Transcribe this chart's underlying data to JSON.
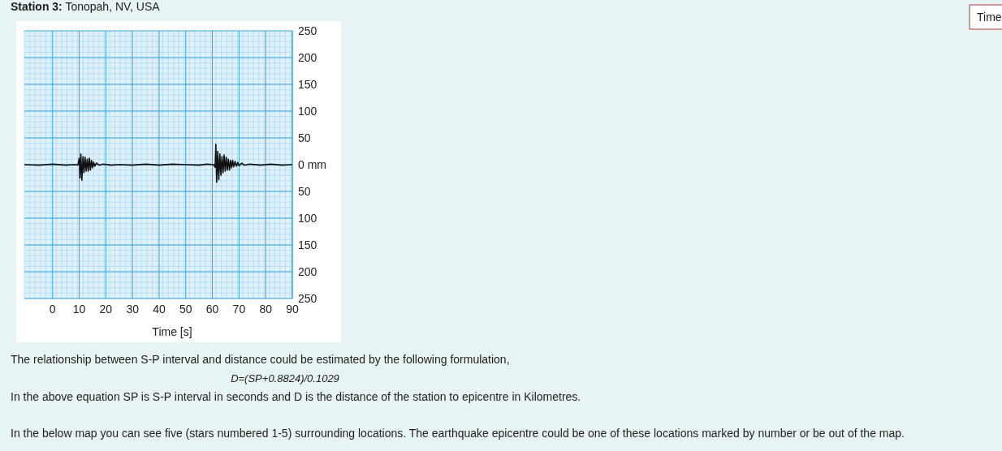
{
  "chart_data": {
    "type": "line",
    "title": "Station 3: Tonopah, NV, USA",
    "xlabel": "Time [s]",
    "x": [
      -10.6,
      -5,
      0,
      5,
      8,
      9.5,
      10,
      10.3,
      10.6,
      11,
      11.4,
      11.8,
      12.2,
      12.6,
      13,
      13.4,
      13.8,
      14.2,
      14.6,
      15,
      15.4,
      15.8,
      16.5,
      17.5,
      19,
      22,
      25,
      30,
      35,
      40,
      45,
      50,
      55,
      58,
      60.5,
      61,
      61.3,
      61.6,
      62,
      62.4,
      62.8,
      63.2,
      63.6,
      64,
      64.4,
      64.8,
      65.2,
      65.6,
      66,
      66.4,
      66.8,
      67.2,
      67.6,
      68,
      68.5,
      69,
      69.5,
      70,
      71,
      72,
      74,
      78,
      82,
      86,
      90
    ],
    "series": [
      {
        "color": "#111111",
        "values": [
          0,
          -1,
          1,
          -1,
          0,
          -0.5,
          12,
          -25,
          20,
          -29,
          15,
          -15,
          14,
          -12,
          10,
          -12,
          12,
          -10,
          8,
          -6,
          5,
          -3,
          3,
          -1,
          1,
          -1,
          0,
          -1,
          1,
          -1,
          1,
          0,
          -1,
          1,
          0,
          -5,
          38,
          -33,
          25,
          -28,
          20,
          -20,
          15,
          -15,
          18,
          -12,
          14,
          -10,
          10,
          -10,
          8,
          -6,
          8,
          -4,
          6,
          -3,
          4,
          -2,
          3,
          -1,
          1,
          -1,
          1,
          -1,
          0
        ]
      }
    ],
    "xlim": [
      -10.6,
      90
    ],
    "ylim": [
      -250,
      250
    ],
    "xticks": [
      0,
      10,
      20,
      30,
      40,
      50,
      60,
      70,
      80,
      90
    ],
    "yticks": [
      {
        "value": 250,
        "label": "250"
      },
      {
        "value": 200,
        "label": "200"
      },
      {
        "value": 150,
        "label": "150"
      },
      {
        "value": 100,
        "label": "100"
      },
      {
        "value": 50,
        "label": "50"
      },
      {
        "value": 0,
        "label": "0 mm"
      },
      {
        "value": -50,
        "label": "50"
      },
      {
        "value": -100,
        "label": "100"
      },
      {
        "value": -150,
        "label": "150"
      },
      {
        "value": -200,
        "label": "200"
      },
      {
        "value": -250,
        "label": "250"
      }
    ],
    "grid": true,
    "marker": "none",
    "line_style": "solid",
    "annotations": [
      "The relationship between S-P interval and distance could be estimated by the following formulation,",
      "D=(SP+0.8824)/0.1029",
      "In the above equation SP is S-P interval in seconds and D is the distance of the station to epicentre in Kilometres.",
      "In the below map you can see five (stars numbered 1-5) surrounding locations. The earthquake epicentre could be one of these locations marked by number or be out of the map.",
      "Time"
    ]
  }
}
